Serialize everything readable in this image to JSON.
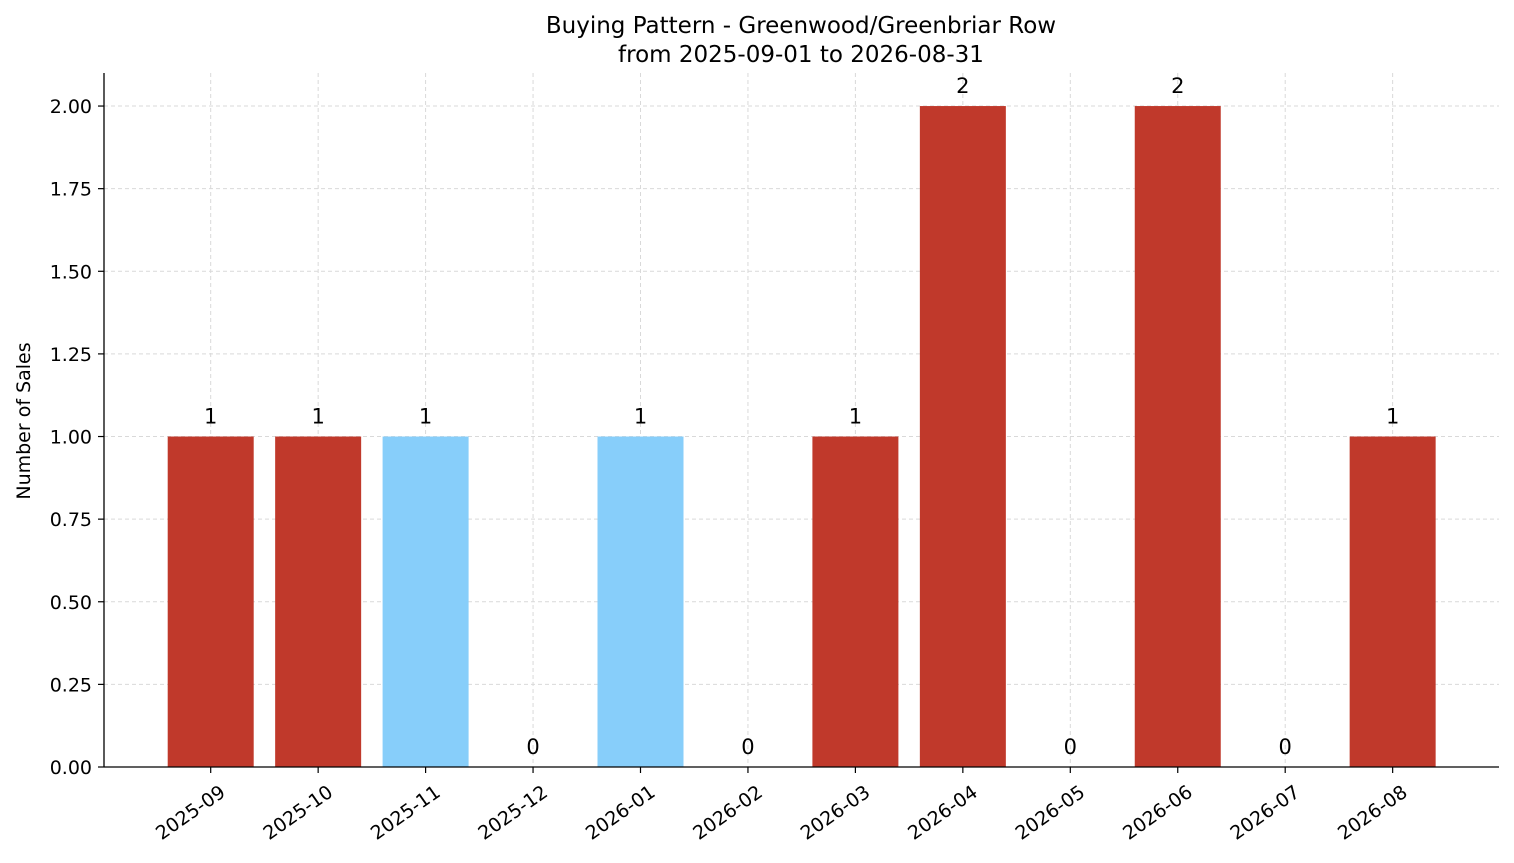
{
  "chart_data": {
    "type": "bar",
    "title": "Buying Pattern - Greenwood/Greenbriar Row",
    "subtitle": "from 2025-09-01 to 2026-08-31",
    "xlabel": "",
    "ylabel": "Number of Sales",
    "categories": [
      "2025-09",
      "2025-10",
      "2025-11",
      "2025-12",
      "2026-01",
      "2026-02",
      "2026-03",
      "2026-04",
      "2026-05",
      "2026-06",
      "2026-07",
      "2026-08"
    ],
    "values": [
      1,
      1,
      1,
      0,
      1,
      0,
      1,
      2,
      0,
      2,
      0,
      1
    ],
    "data_labels": [
      "1",
      "1",
      "1",
      "0",
      "1",
      "0",
      "1",
      "2",
      "0",
      "2",
      "0",
      "1"
    ],
    "bar_colors": [
      "#c0392b",
      "#c0392b",
      "#87cefa",
      "#c0392b",
      "#87cefa",
      "#c0392b",
      "#c0392b",
      "#c0392b",
      "#c0392b",
      "#c0392b",
      "#c0392b",
      "#c0392b"
    ],
    "ylim": [
      0,
      2.1
    ],
    "yticks": [
      0,
      0.25,
      0.5,
      0.75,
      1.0,
      1.25,
      1.5,
      1.75,
      2.0
    ],
    "ytick_labels": [
      "0.00",
      "0.25",
      "0.50",
      "0.75",
      "1.00",
      "1.25",
      "1.50",
      "1.75",
      "2.00"
    ],
    "grid": true,
    "legend": "none"
  }
}
